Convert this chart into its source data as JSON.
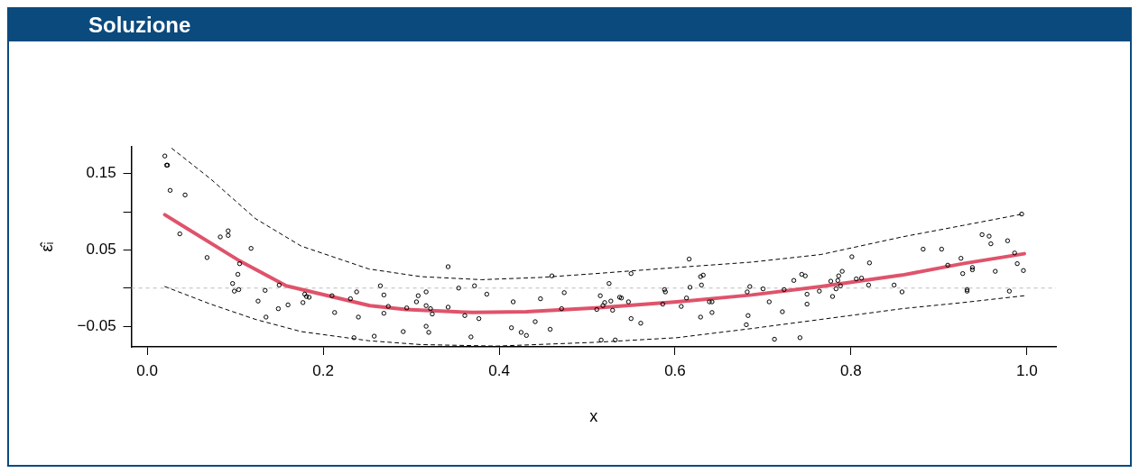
{
  "chart_data": {
    "type": "scatter",
    "title": "Soluzione",
    "xlabel": "x",
    "ylabel": "ε̂ᵢ",
    "xlim": [
      -0.018,
      1.033
    ],
    "ylim": [
      -0.077,
      0.185
    ],
    "xticks": [
      {
        "value": 0,
        "label": "0.0"
      },
      0.2,
      0.4,
      0.6,
      0.8,
      {
        "value": 1,
        "label": "1.0"
      }
    ],
    "yticks": [
      {
        "value": -0.05,
        "label": "−0.05"
      },
      {
        "value": 0,
        "label": null
      },
      {
        "value": 0.05,
        "label": "0.05"
      },
      {
        "value": 0.1,
        "label": null
      },
      {
        "value": 0.15,
        "label": "0.15"
      }
    ],
    "grid": false,
    "legend": false,
    "ref_lines": [
      {
        "axis": "y",
        "value": 0,
        "color": "#bbbbbb",
        "line_style": "dashed"
      }
    ],
    "series": [
      {
        "type": "scatter",
        "color": "#000000",
        "marker": "circle",
        "x": [
          0.02,
          0.022,
          0.023,
          0.026,
          0.043,
          0.037,
          0.068,
          0.083,
          0.092,
          0.092,
          0.118,
          0.105,
          0.103,
          0.097,
          0.104,
          0.099,
          0.134,
          0.15,
          0.126,
          0.149,
          0.16,
          0.135,
          0.179,
          0.181,
          0.184,
          0.177,
          0.21,
          0.213,
          0.231,
          0.238,
          0.24,
          0.235,
          0.258,
          0.265,
          0.269,
          0.269,
          0.274,
          0.291,
          0.295,
          0.306,
          0.308,
          0.317,
          0.317,
          0.322,
          0.324,
          0.317,
          0.32,
          0.342,
          0.342,
          0.354,
          0.361,
          0.368,
          0.372,
          0.377,
          0.386,
          0.416,
          0.414,
          0.425,
          0.431,
          0.441,
          0.447,
          0.458,
          0.46,
          0.474,
          0.471,
          0.511,
          0.515,
          0.516,
          0.52,
          0.518,
          0.525,
          0.527,
          0.529,
          0.532,
          0.537,
          0.539,
          0.547,
          0.55,
          0.55,
          0.561,
          0.588,
          0.589,
          0.586,
          0.607,
          0.613,
          0.616,
          0.617,
          0.629,
          0.632,
          0.63,
          0.629,
          0.639,
          0.642,
          0.642,
          0.681,
          0.683,
          0.682,
          0.685,
          0.7,
          0.707,
          0.713,
          0.722,
          0.724,
          0.735,
          0.744,
          0.748,
          0.742,
          0.75,
          0.75,
          0.764,
          0.779,
          0.777,
          0.783,
          0.785,
          0.786,
          0.79,
          0.788,
          0.801,
          0.806,
          0.812,
          0.82,
          0.821,
          0.849,
          0.858,
          0.882,
          0.903,
          0.91,
          0.925,
          0.927,
          0.938,
          0.938,
          0.932,
          0.932,
          0.949,
          0.957,
          0.959,
          0.964,
          0.978,
          0.98,
          0.986,
          0.989,
          0.996,
          0.994
        ],
        "values": [
          0.173,
          0.161,
          0.161,
          0.128,
          0.122,
          0.071,
          0.04,
          0.067,
          0.075,
          0.069,
          0.052,
          0.032,
          0.018,
          0.006,
          -0.002,
          -0.004,
          -0.003,
          0.004,
          -0.017,
          -0.027,
          -0.022,
          -0.038,
          -0.008,
          -0.011,
          -0.012,
          -0.019,
          -0.01,
          -0.032,
          -0.014,
          -0.005,
          -0.038,
          -0.065,
          -0.063,
          0.003,
          -0.009,
          -0.033,
          -0.024,
          -0.057,
          -0.026,
          -0.018,
          -0.01,
          -0.005,
          -0.023,
          -0.027,
          -0.034,
          -0.05,
          -0.058,
          0.028,
          -0.025,
          0.0,
          -0.036,
          -0.064,
          0.003,
          -0.04,
          -0.008,
          -0.018,
          -0.052,
          -0.058,
          -0.062,
          -0.044,
          -0.014,
          -0.054,
          0.016,
          -0.006,
          -0.027,
          -0.028,
          -0.01,
          -0.068,
          -0.019,
          -0.023,
          0.006,
          -0.017,
          -0.029,
          -0.068,
          -0.012,
          -0.013,
          -0.018,
          -0.04,
          0.019,
          -0.046,
          -0.002,
          -0.005,
          -0.021,
          -0.024,
          -0.013,
          0.038,
          0.001,
          0.015,
          0.017,
          0.004,
          -0.038,
          -0.018,
          -0.018,
          -0.032,
          -0.048,
          -0.036,
          -0.005,
          0.002,
          -0.001,
          -0.018,
          -0.067,
          -0.031,
          -0.002,
          0.01,
          0.018,
          0.016,
          -0.065,
          -0.008,
          -0.021,
          -0.004,
          -0.011,
          0.009,
          -0.001,
          0.01,
          0.016,
          0.022,
          0.003,
          0.041,
          0.012,
          0.013,
          0.004,
          0.033,
          0.004,
          -0.005,
          0.051,
          0.051,
          0.03,
          0.039,
          0.019,
          0.027,
          0.024,
          -0.002,
          -0.004,
          0.07,
          0.068,
          0.058,
          0.022,
          0.062,
          -0.004,
          0.046,
          0.032,
          0.023,
          0.097
        ]
      },
      {
        "type": "line",
        "color": "#df536b",
        "x": [
          0.02,
          0.103,
          0.158,
          0.253,
          0.294,
          0.37,
          0.431,
          0.51,
          0.602,
          0.687,
          0.766,
          0.858,
          0.927,
          0.997
        ],
        "values": [
          0.096,
          0.037,
          0.003,
          -0.023,
          -0.028,
          -0.032,
          -0.031,
          -0.026,
          -0.018,
          -0.009,
          0.002,
          0.017,
          0.032,
          0.045
        ]
      },
      {
        "type": "line",
        "color": "#000000",
        "line_style": "dashed",
        "x": [
          0.028,
          0.072,
          0.123,
          0.175,
          0.252,
          0.311,
          0.38,
          0.448,
          0.51,
          0.602,
          0.687,
          0.766,
          0.858,
          0.927,
          0.995
        ],
        "values": [
          0.183,
          0.143,
          0.091,
          0.055,
          0.025,
          0.015,
          0.011,
          0.014,
          0.019,
          0.027,
          0.034,
          0.044,
          0.067,
          0.082,
          0.097
        ]
      },
      {
        "type": "line",
        "color": "#000000",
        "line_style": "dashed",
        "x": [
          0.02,
          0.072,
          0.123,
          0.175,
          0.252,
          0.311,
          0.397,
          0.51,
          0.602,
          0.687,
          0.766,
          0.858,
          0.927,
          0.997
        ],
        "values": [
          0.002,
          -0.021,
          -0.041,
          -0.057,
          -0.069,
          -0.074,
          -0.076,
          -0.071,
          -0.065,
          -0.053,
          -0.041,
          -0.027,
          -0.019,
          -0.01
        ]
      }
    ]
  }
}
